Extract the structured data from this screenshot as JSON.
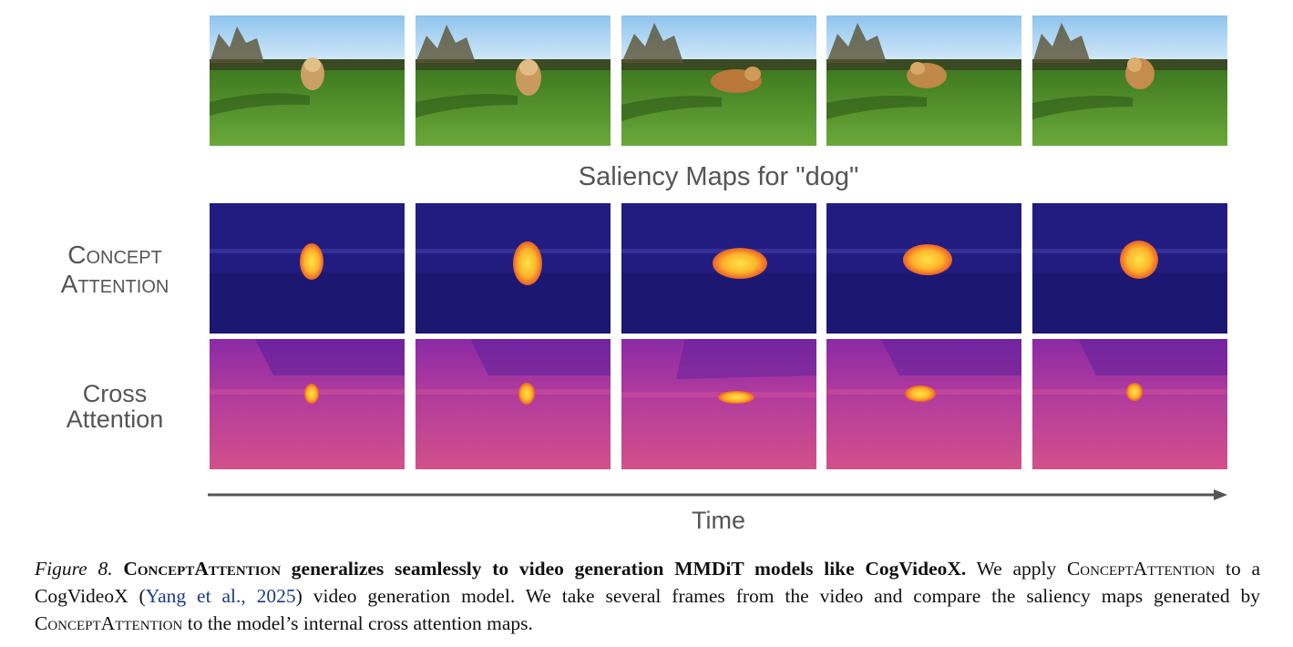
{
  "figure": {
    "saliency_title": "Saliency Maps for \"dog\"",
    "row_labels": {
      "concept_attention_line1": "Concept",
      "concept_attention_line2": "Attention",
      "cross_attention_line1": "Cross",
      "cross_attention_line2": "Attention"
    },
    "time_label": "Time",
    "colors": {
      "concept_map_background": "#1e1a7a",
      "concept_map_highlight": "#ffd23a",
      "cross_map_background": "#b03aa8",
      "cross_map_highlight": "#ffd94a",
      "grass": "#4f8f2a",
      "sky": "#bfe0f8",
      "arrow": "#555555",
      "citation_link": "#1a3a8a"
    }
  },
  "caption": {
    "figure_label": "Figure 8.",
    "bold_name": "ConceptAttention",
    "bold_rest": " generalizes seamlessly to video generation MMDiT models like CogVideoX.",
    "text1": " We apply ",
    "name2": "ConceptAttention",
    "text2": " to a CogVideoX (",
    "citation": "Yang et al., 2025",
    "text3": ") video generation model. We take several frames from the video and compare the saliency maps generated by ",
    "name3": "ConceptAttention",
    "text4": " to the model’s internal cross attention maps."
  }
}
